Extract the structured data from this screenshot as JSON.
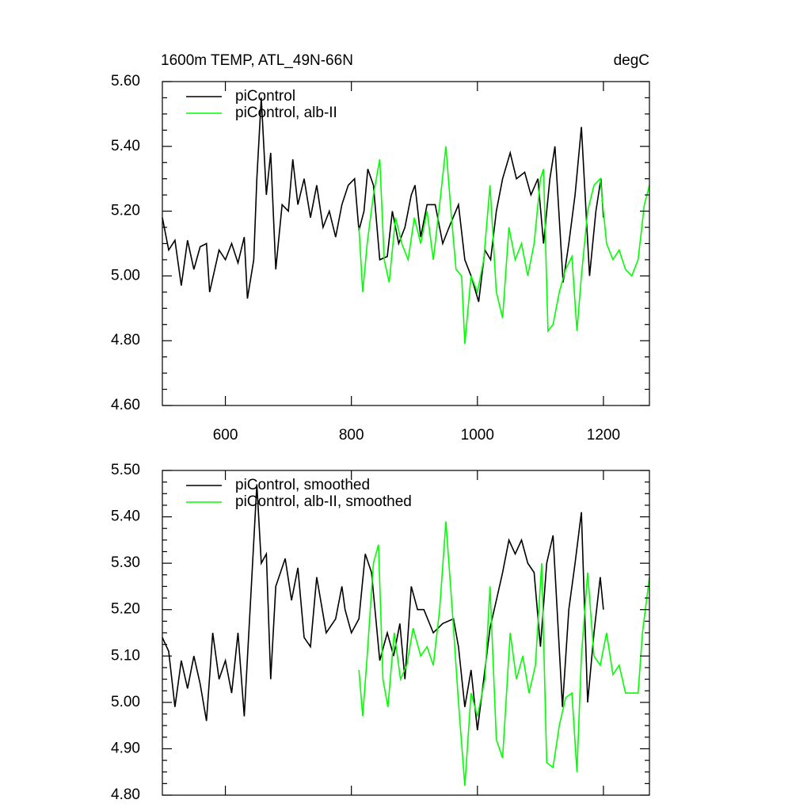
{
  "chart_data": [
    {
      "type": "line",
      "title": "1600m TEMP, ATL_49N-66N",
      "subtitle": "degC",
      "xlim": [
        500,
        1273
      ],
      "xticks": [
        600,
        800,
        1000,
        1200
      ],
      "ylim": [
        4.6,
        5.6
      ],
      "yticks": [
        {
          "value": 4.6,
          "label": "4.60"
        },
        {
          "value": 4.8,
          "label": "4.80"
        },
        {
          "value": 5.0,
          "label": "5.00"
        },
        {
          "value": 5.2,
          "label": "5.20"
        },
        {
          "value": 5.4,
          "label": "5.40"
        },
        {
          "value": 5.6,
          "label": "5.60"
        }
      ],
      "series": [
        {
          "name": "piControl",
          "color": "#000000",
          "x": [
            500,
            510,
            520,
            530,
            540,
            550,
            560,
            570,
            575,
            590,
            600,
            610,
            620,
            630,
            635,
            645,
            650,
            657,
            665,
            672,
            680,
            690,
            700,
            707,
            715,
            725,
            735,
            745,
            755,
            765,
            775,
            785,
            795,
            805,
            812,
            820,
            826,
            835,
            845,
            857,
            865,
            875,
            885,
            895,
            901,
            910,
            920,
            933,
            945,
            955,
            970,
            980,
            990,
            1002,
            1012,
            1021,
            1030,
            1040,
            1052,
            1062,
            1075,
            1085,
            1096,
            1105,
            1115,
            1123,
            1136,
            1145,
            1155,
            1165,
            1178,
            1188,
            1196,
            1200
          ],
          "values": [
            5.18,
            5.08,
            5.11,
            4.97,
            5.11,
            5.02,
            5.09,
            5.1,
            4.95,
            5.08,
            5.05,
            5.1,
            5.04,
            5.12,
            4.93,
            5.05,
            5.3,
            5.55,
            5.25,
            5.38,
            5.02,
            5.22,
            5.2,
            5.36,
            5.22,
            5.3,
            5.18,
            5.28,
            5.15,
            5.2,
            5.12,
            5.22,
            5.28,
            5.3,
            5.14,
            5.2,
            5.33,
            5.28,
            5.05,
            5.06,
            5.2,
            5.1,
            5.15,
            5.25,
            5.28,
            5.12,
            5.22,
            5.22,
            5.1,
            5.15,
            5.22,
            5.05,
            5.0,
            4.92,
            5.08,
            5.05,
            5.2,
            5.3,
            5.38,
            5.3,
            5.32,
            5.25,
            5.3,
            5.1,
            5.3,
            5.4,
            4.98,
            5.1,
            5.25,
            5.46,
            5.0,
            5.2,
            5.3,
            5.18
          ]
        },
        {
          "name": "piControl, alb-II",
          "color": "#00ff00",
          "x": [
            812,
            818,
            825,
            835,
            845,
            852,
            860,
            870,
            880,
            890,
            900,
            910,
            920,
            930,
            940,
            950,
            958,
            966,
            975,
            980,
            990,
            1000,
            1010,
            1020,
            1030,
            1040,
            1050,
            1060,
            1070,
            1080,
            1090,
            1100,
            1105,
            1112,
            1120,
            1130,
            1140,
            1150,
            1158,
            1165,
            1175,
            1185,
            1195,
            1205,
            1215,
            1225,
            1235,
            1245,
            1255,
            1265,
            1273
          ],
          "values": [
            5.15,
            4.95,
            5.1,
            5.25,
            5.36,
            5.05,
            4.98,
            5.18,
            5.1,
            5.05,
            5.18,
            5.1,
            5.2,
            5.05,
            5.22,
            5.4,
            5.2,
            5.02,
            5.0,
            4.79,
            5.0,
            4.95,
            5.05,
            5.28,
            4.95,
            4.87,
            5.15,
            5.05,
            5.1,
            5.0,
            5.1,
            5.3,
            5.33,
            4.83,
            4.85,
            4.95,
            5.02,
            5.06,
            4.83,
            5.0,
            5.2,
            5.28,
            5.3,
            5.1,
            5.05,
            5.08,
            5.02,
            5.0,
            5.05,
            5.22,
            5.28
          ]
        }
      ]
    },
    {
      "type": "line",
      "xlim": [
        500,
        1273
      ],
      "xticks": [
        600,
        800,
        1000,
        1200
      ],
      "ylim": [
        4.8,
        5.5
      ],
      "yticks": [
        {
          "value": 4.8,
          "label": "4.80"
        },
        {
          "value": 4.9,
          "label": "4.90"
        },
        {
          "value": 5.0,
          "label": "5.00"
        },
        {
          "value": 5.1,
          "label": "5.10"
        },
        {
          "value": 5.2,
          "label": "5.20"
        },
        {
          "value": 5.3,
          "label": "5.30"
        },
        {
          "value": 5.4,
          "label": "5.40"
        },
        {
          "value": 5.5,
          "label": "5.50"
        }
      ],
      "series": [
        {
          "name": "piControl, smoothed",
          "color": "#000000",
          "x": [
            500,
            510,
            520,
            530,
            540,
            550,
            560,
            570,
            580,
            590,
            600,
            610,
            620,
            630,
            640,
            650,
            657,
            665,
            672,
            680,
            695,
            705,
            715,
            725,
            735,
            745,
            760,
            775,
            785,
            790,
            800,
            812,
            822,
            832,
            845,
            857,
            867,
            877,
            885,
            895,
            905,
            915,
            930,
            945,
            962,
            970,
            980,
            990,
            1000,
            1010,
            1020,
            1030,
            1040,
            1050,
            1060,
            1070,
            1080,
            1090,
            1100,
            1110,
            1120,
            1135,
            1145,
            1155,
            1165,
            1175,
            1185,
            1195,
            1200
          ],
          "values": [
            5.14,
            5.11,
            4.99,
            5.09,
            5.03,
            5.1,
            5.04,
            4.96,
            5.15,
            5.05,
            5.09,
            5.02,
            5.15,
            4.97,
            5.22,
            5.47,
            5.3,
            5.32,
            5.05,
            5.25,
            5.31,
            5.22,
            5.29,
            5.14,
            5.12,
            5.27,
            5.15,
            5.18,
            5.25,
            5.2,
            5.15,
            5.18,
            5.32,
            5.28,
            5.09,
            5.15,
            5.1,
            5.17,
            5.05,
            5.25,
            5.2,
            5.2,
            5.15,
            5.17,
            5.18,
            5.12,
            4.99,
            5.07,
            4.94,
            5.05,
            5.16,
            5.22,
            5.28,
            5.35,
            5.32,
            5.35,
            5.3,
            5.28,
            5.12,
            5.3,
            5.36,
            4.99,
            5.2,
            5.3,
            5.41,
            5.0,
            5.15,
            5.27,
            5.2
          ]
        },
        {
          "name": "piControl, alb-II, smoothed",
          "color": "#00ff00",
          "x": [
            812,
            818,
            825,
            835,
            843,
            850,
            858,
            868,
            878,
            888,
            898,
            910,
            920,
            930,
            940,
            950,
            960,
            970,
            980,
            990,
            1000,
            1012,
            1020,
            1030,
            1040,
            1052,
            1062,
            1072,
            1082,
            1092,
            1102,
            1110,
            1120,
            1130,
            1140,
            1150,
            1158,
            1165,
            1175,
            1185,
            1195,
            1205,
            1215,
            1225,
            1235,
            1245,
            1255,
            1262,
            1273
          ],
          "values": [
            5.07,
            4.97,
            5.1,
            5.3,
            5.34,
            5.05,
            4.99,
            5.15,
            5.05,
            5.08,
            5.16,
            5.1,
            5.12,
            5.08,
            5.2,
            5.39,
            5.2,
            5.0,
            4.82,
            5.02,
            4.97,
            5.05,
            5.25,
            4.92,
            4.88,
            5.15,
            5.05,
            5.1,
            5.02,
            5.08,
            5.3,
            4.87,
            4.86,
            4.95,
            5.01,
            5.02,
            4.85,
            5.1,
            5.28,
            5.1,
            5.08,
            5.15,
            5.06,
            5.08,
            5.02,
            5.02,
            5.02,
            5.15,
            5.27
          ]
        }
      ]
    }
  ]
}
